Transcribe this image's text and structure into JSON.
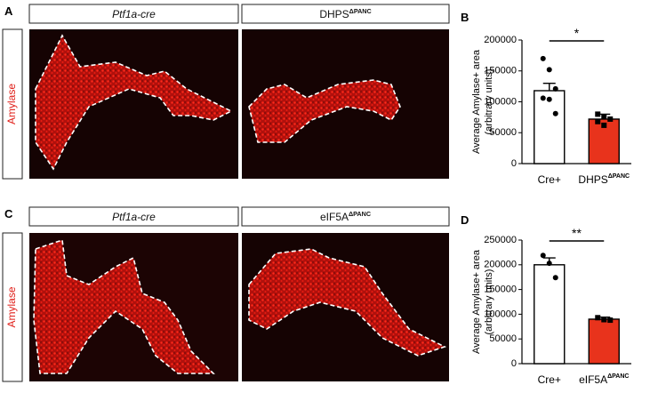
{
  "panels": [
    {
      "letter": "A",
      "stain": "Amylase",
      "labels": [
        {
          "text": "Ptf1a-cre"
        },
        {
          "text": "DHPS",
          "sup": "ΔPANC"
        }
      ]
    },
    {
      "letter": "C",
      "stain": "Amylase",
      "labels": [
        {
          "text": "Ptf1a-cre"
        },
        {
          "text": "eIF5A",
          "sup": "ΔPANC"
        }
      ]
    }
  ],
  "chart_data": [
    {
      "type": "bar",
      "panel": "B",
      "ylabel": [
        "Average Amylase+ area",
        "(arbitrary units)"
      ],
      "categories": [
        "Cre+",
        "DHPS"
      ],
      "category_sup": [
        null,
        "ΔPANC"
      ],
      "values": [
        118000,
        72000
      ],
      "errors": [
        12000,
        8000
      ],
      "points": [
        [
          170000,
          152000,
          121000,
          106000,
          104000,
          81000
        ],
        [
          80000,
          76000,
          72000,
          68000,
          62000
        ]
      ],
      "colors": [
        "#ffffff",
        "#e8331c"
      ],
      "significance": "*",
      "ylim": [
        0,
        200000
      ],
      "yticks": [
        0,
        50000,
        100000,
        150000,
        200000
      ]
    },
    {
      "type": "bar",
      "panel": "D",
      "ylabel": [
        "Average Amylase+ area",
        "(arbitrary units)"
      ],
      "categories": [
        "Cre+",
        "eIF5A"
      ],
      "category_sup": [
        null,
        "ΔPANC"
      ],
      "values": [
        200000,
        90000
      ],
      "errors": [
        14000,
        4000
      ],
      "points": [
        [
          219000,
          203000,
          174000
        ],
        [
          93000,
          89000,
          88000
        ]
      ],
      "colors": [
        "#ffffff",
        "#e8331c"
      ],
      "significance": "**",
      "ylim": [
        0,
        250000
      ],
      "yticks": [
        0,
        50000,
        100000,
        150000,
        200000,
        250000
      ]
    }
  ]
}
